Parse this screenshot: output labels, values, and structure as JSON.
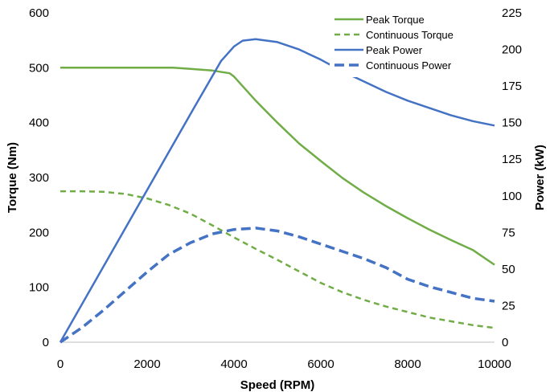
{
  "chart_data": {
    "type": "line",
    "title": "",
    "xlabel": "Speed (RPM)",
    "ylabel_left": "Torque (Nm)",
    "ylabel_right": "Power (kW)",
    "xlim": [
      0,
      10000
    ],
    "ylim_left": [
      0,
      600
    ],
    "ylim_right": [
      0,
      225
    ],
    "x_ticks": [
      0,
      2000,
      4000,
      6000,
      8000,
      10000
    ],
    "y_left_ticks": [
      0,
      100,
      200,
      300,
      400,
      500,
      600
    ],
    "y_right_ticks": [
      0,
      25,
      50,
      75,
      100,
      125,
      150,
      175,
      200,
      225
    ],
    "grid": false,
    "legend_position": "top-right",
    "series": [
      {
        "name": "Peak Torque",
        "axis": "left",
        "color": "#70ad47",
        "style": "solid",
        "points": [
          [
            0,
            500
          ],
          [
            1000,
            500
          ],
          [
            2000,
            500
          ],
          [
            2600,
            500
          ],
          [
            3000,
            498
          ],
          [
            3500,
            495
          ],
          [
            3900,
            490
          ],
          [
            4000,
            484
          ],
          [
            4500,
            440
          ],
          [
            5000,
            400
          ],
          [
            5500,
            362
          ],
          [
            6000,
            330
          ],
          [
            6500,
            299
          ],
          [
            7000,
            272
          ],
          [
            7500,
            248
          ],
          [
            8000,
            226
          ],
          [
            8500,
            205
          ],
          [
            9000,
            186
          ],
          [
            9500,
            168
          ],
          [
            10000,
            141
          ]
        ]
      },
      {
        "name": "Continuous Torque",
        "axis": "left",
        "color": "#70ad47",
        "style": "dashed",
        "points": [
          [
            0,
            275
          ],
          [
            500,
            275
          ],
          [
            1000,
            274
          ],
          [
            1500,
            270
          ],
          [
            2000,
            262
          ],
          [
            2500,
            250
          ],
          [
            3000,
            234
          ],
          [
            3500,
            213
          ],
          [
            4000,
            191
          ],
          [
            4500,
            170
          ],
          [
            5000,
            150
          ],
          [
            5500,
            129
          ],
          [
            6000,
            108
          ],
          [
            6500,
            91
          ],
          [
            7000,
            77
          ],
          [
            7500,
            65
          ],
          [
            8000,
            55
          ],
          [
            8500,
            45
          ],
          [
            9000,
            38
          ],
          [
            9500,
            31
          ],
          [
            10000,
            26
          ]
        ]
      },
      {
        "name": "Peak Power",
        "axis": "right",
        "color": "#4472c4",
        "style": "solid",
        "points": [
          [
            0,
            0
          ],
          [
            1000,
            52
          ],
          [
            2000,
            104
          ],
          [
            3000,
            156
          ],
          [
            3700,
            192
          ],
          [
            4000,
            202
          ],
          [
            4200,
            206
          ],
          [
            4500,
            207
          ],
          [
            5000,
            205
          ],
          [
            5500,
            200
          ],
          [
            6000,
            193
          ],
          [
            6500,
            185
          ],
          [
            7000,
            178
          ],
          [
            7500,
            171
          ],
          [
            8000,
            165
          ],
          [
            8500,
            160
          ],
          [
            9000,
            155
          ],
          [
            9500,
            151
          ],
          [
            10000,
            148
          ]
        ]
      },
      {
        "name": "Continuous Power",
        "axis": "right",
        "color": "#4472c4",
        "style": "dashed",
        "points": [
          [
            0,
            0
          ],
          [
            500,
            10
          ],
          [
            1000,
            22
          ],
          [
            1500,
            35
          ],
          [
            2000,
            48
          ],
          [
            2500,
            60
          ],
          [
            3000,
            68
          ],
          [
            3500,
            74
          ],
          [
            4000,
            77
          ],
          [
            4500,
            78
          ],
          [
            5000,
            76
          ],
          [
            5500,
            72
          ],
          [
            6000,
            67
          ],
          [
            6500,
            62
          ],
          [
            7000,
            57
          ],
          [
            7500,
            51
          ],
          [
            8000,
            43
          ],
          [
            8500,
            38
          ],
          [
            9000,
            34
          ],
          [
            9500,
            30
          ],
          [
            10000,
            28
          ]
        ]
      }
    ]
  }
}
